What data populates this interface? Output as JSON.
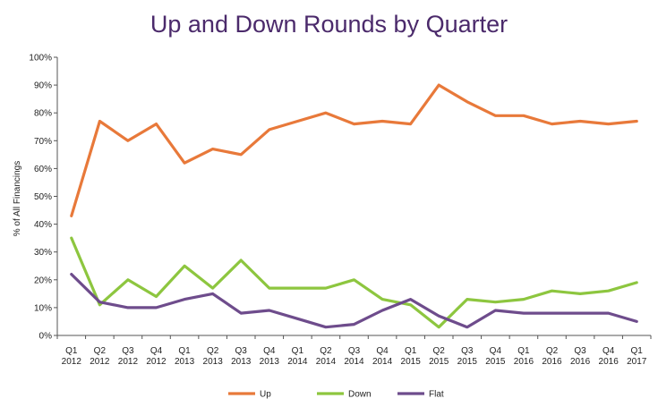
{
  "chart_data": {
    "type": "line",
    "title": "Up and Down Rounds by Quarter",
    "xlabel": "",
    "ylabel": "% of All Financings",
    "ylim": [
      0,
      100
    ],
    "yticks": [
      "0%",
      "10%",
      "20%",
      "30%",
      "40%",
      "50%",
      "60%",
      "70%",
      "80%",
      "90%",
      "100%"
    ],
    "categories": [
      [
        "Q1",
        "2012"
      ],
      [
        "Q2",
        "2012"
      ],
      [
        "Q3",
        "2012"
      ],
      [
        "Q4",
        "2012"
      ],
      [
        "Q1",
        "2013"
      ],
      [
        "Q2",
        "2013"
      ],
      [
        "Q3",
        "2013"
      ],
      [
        "Q4",
        "2013"
      ],
      [
        "Q1",
        "2014"
      ],
      [
        "Q2",
        "2014"
      ],
      [
        "Q3",
        "2014"
      ],
      [
        "Q4",
        "2014"
      ],
      [
        "Q1",
        "2015"
      ],
      [
        "Q2",
        "2015"
      ],
      [
        "Q3",
        "2015"
      ],
      [
        "Q4",
        "2015"
      ],
      [
        "Q1",
        "2016"
      ],
      [
        "Q2",
        "2016"
      ],
      [
        "Q3",
        "2016"
      ],
      [
        "Q4",
        "2016"
      ],
      [
        "Q1",
        "2017"
      ]
    ],
    "grid": false,
    "legend_position": "bottom",
    "series": [
      {
        "name": "Up",
        "color": "#e8793a",
        "values": [
          43,
          77,
          70,
          76,
          62,
          67,
          65,
          74,
          77,
          80,
          76,
          77,
          76,
          90,
          84,
          79,
          79,
          76,
          77,
          76,
          77
        ]
      },
      {
        "name": "Down",
        "color": "#8dc63f",
        "values": [
          35,
          11,
          20,
          14,
          25,
          17,
          27,
          17,
          17,
          17,
          20,
          13,
          11,
          3,
          13,
          12,
          13,
          16,
          15,
          16,
          19
        ]
      },
      {
        "name": "Flat",
        "color": "#6e4c8c",
        "values": [
          22,
          12,
          10,
          10,
          13,
          15,
          8,
          9,
          6,
          3,
          4,
          9,
          13,
          7,
          3,
          9,
          8,
          8,
          8,
          8,
          5
        ]
      }
    ]
  }
}
